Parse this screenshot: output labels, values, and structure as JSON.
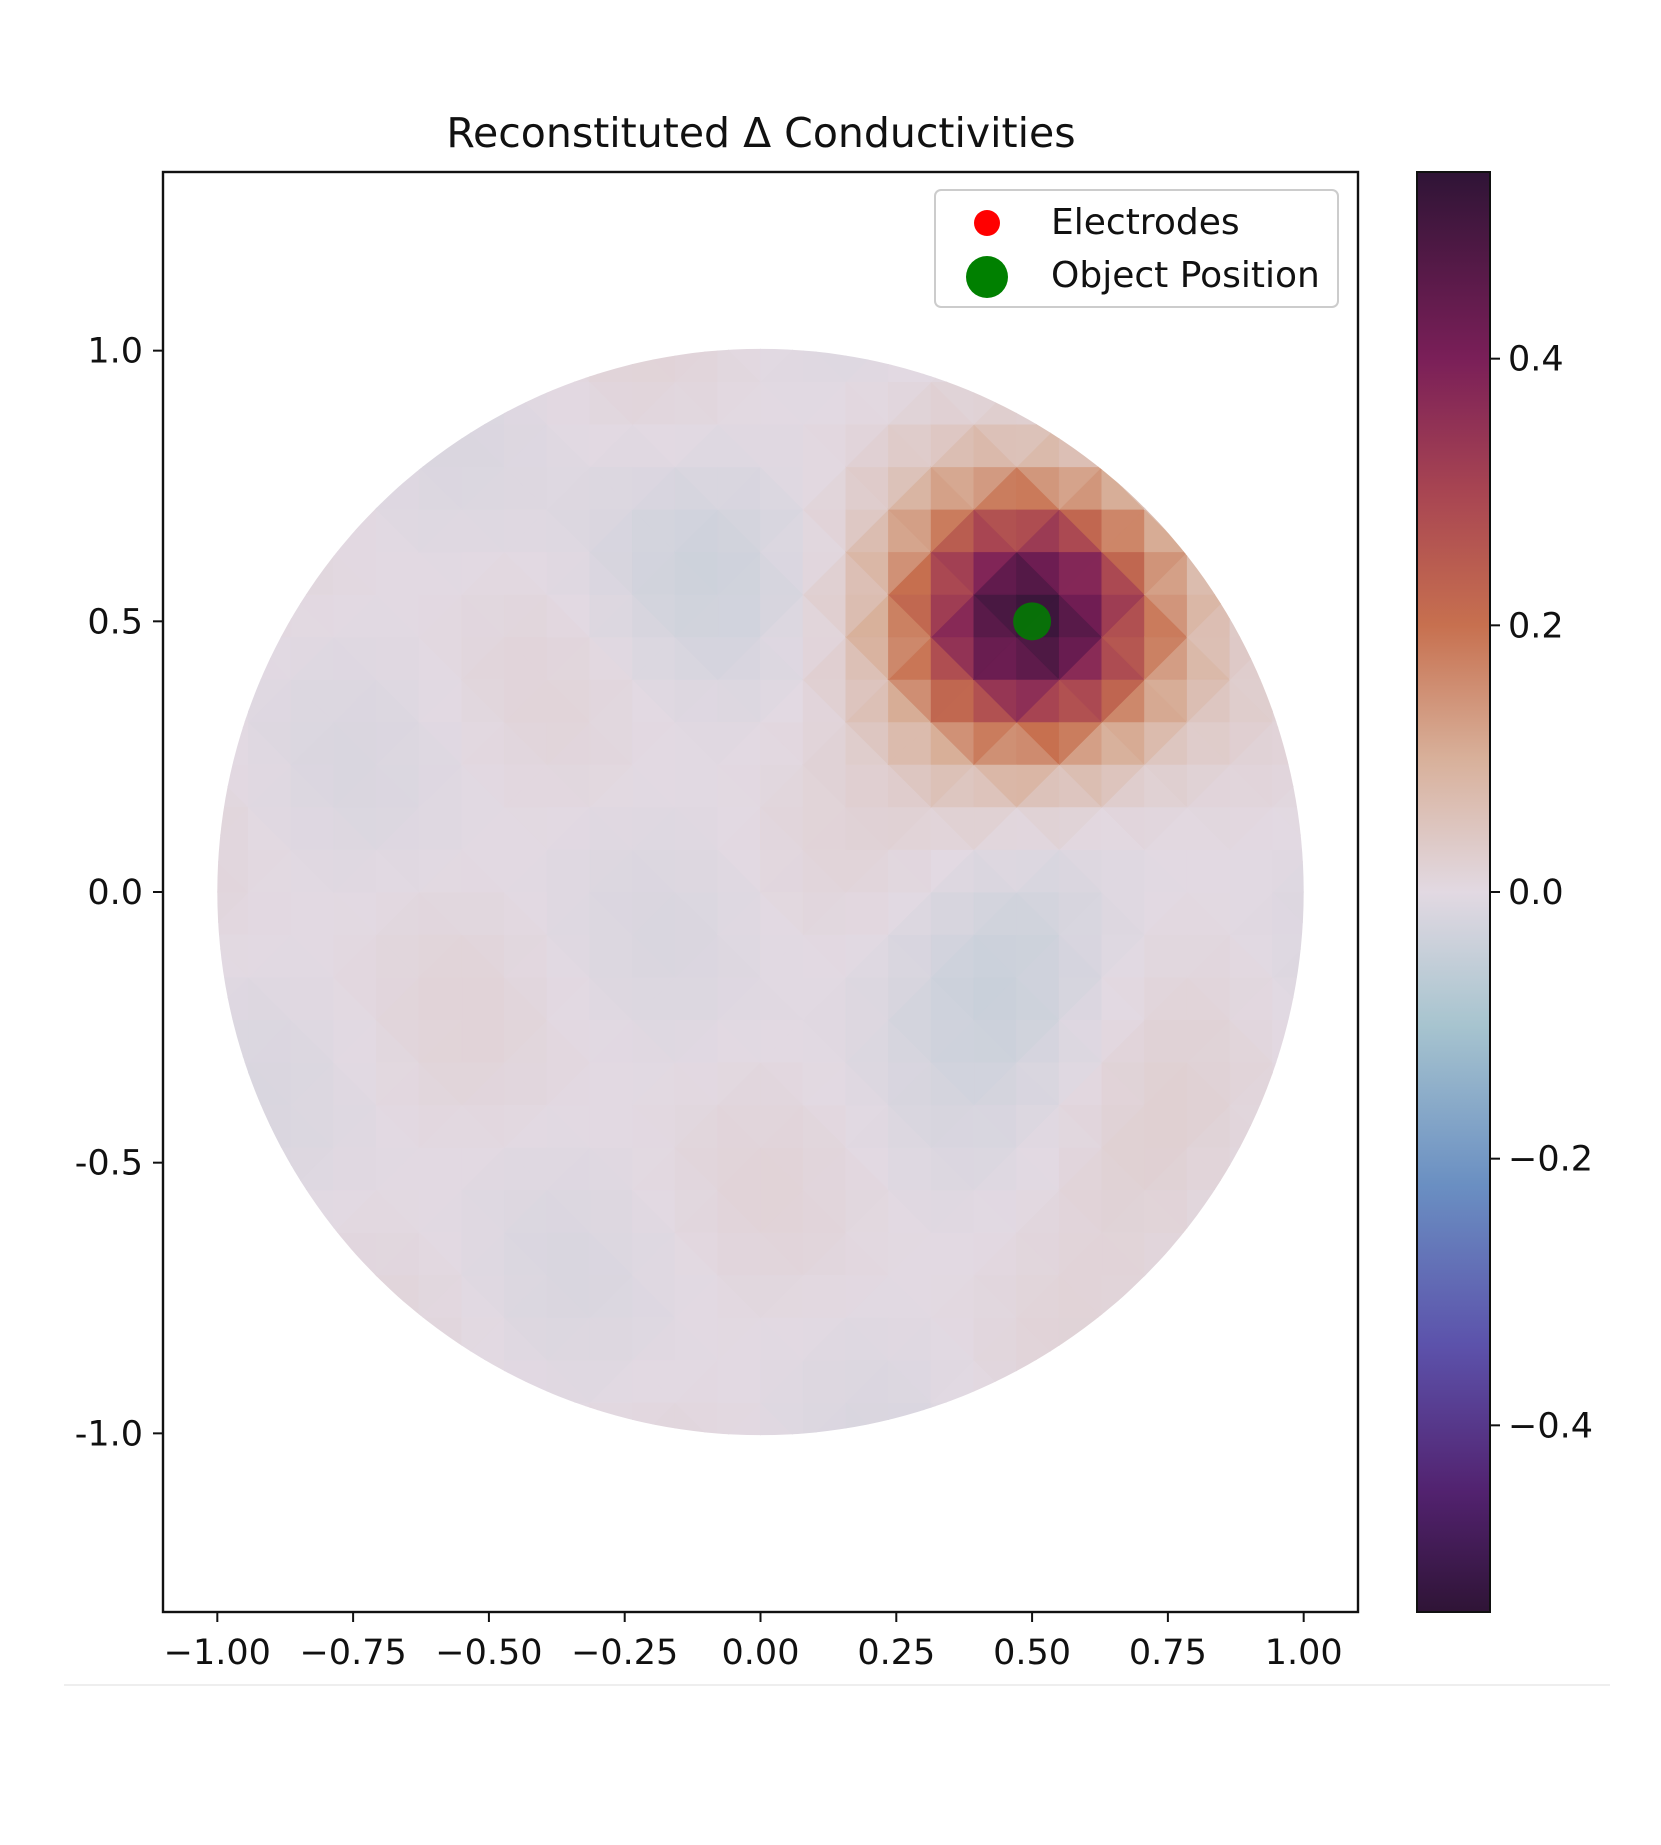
{
  "chart_data": {
    "type": "heatmap",
    "title": "Reconstituted Δ Conductivities",
    "xlabel": "",
    "ylabel": "",
    "xlim": [
      -1.1,
      1.1
    ],
    "ylim": [
      -1.33,
      1.33
    ],
    "x_ticks": [
      -1.0,
      -0.75,
      -0.5,
      -0.25,
      0.0,
      0.25,
      0.5,
      0.75,
      1.0
    ],
    "x_tick_labels": [
      "−1.00",
      "−0.75",
      "−0.50",
      "−0.25",
      "0.00",
      "0.25",
      "0.50",
      "0.75",
      "1.00"
    ],
    "y_ticks": [
      1.0,
      0.5,
      0.0,
      -0.5,
      -1.0
    ],
    "y_tick_labels": [
      "1.0",
      "0.5",
      "0.0",
      "-0.5",
      "-1.0"
    ],
    "domain": {
      "shape": "circle",
      "center": [
        0,
        0
      ],
      "radius": 1.0
    },
    "colorbar": {
      "range": [
        -0.54,
        0.54
      ],
      "ticks": [
        0.4,
        0.2,
        0.0,
        -0.2,
        -0.4
      ],
      "tick_labels": [
        "0.4",
        "0.2",
        "0.0",
        "−0.2",
        "−0.4"
      ],
      "colormap": "twilight_shifted",
      "color_stops": [
        {
          "value": -0.54,
          "color": "#2f1436"
        },
        {
          "value": -0.45,
          "color": "#52226f"
        },
        {
          "value": -0.34,
          "color": "#5c52ab"
        },
        {
          "value": -0.22,
          "color": "#6a8fc2"
        },
        {
          "value": -0.1,
          "color": "#a7c4cf"
        },
        {
          "value": 0.0,
          "color": "#e2d9e2"
        },
        {
          "value": 0.1,
          "color": "#d8b09a"
        },
        {
          "value": 0.2,
          "color": "#c7704f"
        },
        {
          "value": 0.3,
          "color": "#a84552"
        },
        {
          "value": 0.4,
          "color": "#7a1f58"
        },
        {
          "value": 0.54,
          "color": "#2f1436"
        }
      ]
    },
    "object_blob": {
      "center": [
        0.5,
        0.5
      ],
      "peak": 0.52
    },
    "series": [
      {
        "name": "Electrodes",
        "marker": "circle",
        "color": "#ff0000",
        "points": []
      },
      {
        "name": "Object Position",
        "marker": "circle",
        "color": "#008000",
        "points": [
          [
            0.5,
            0.5
          ]
        ]
      }
    ],
    "legend": {
      "position": "top-right"
    },
    "grid": false
  }
}
